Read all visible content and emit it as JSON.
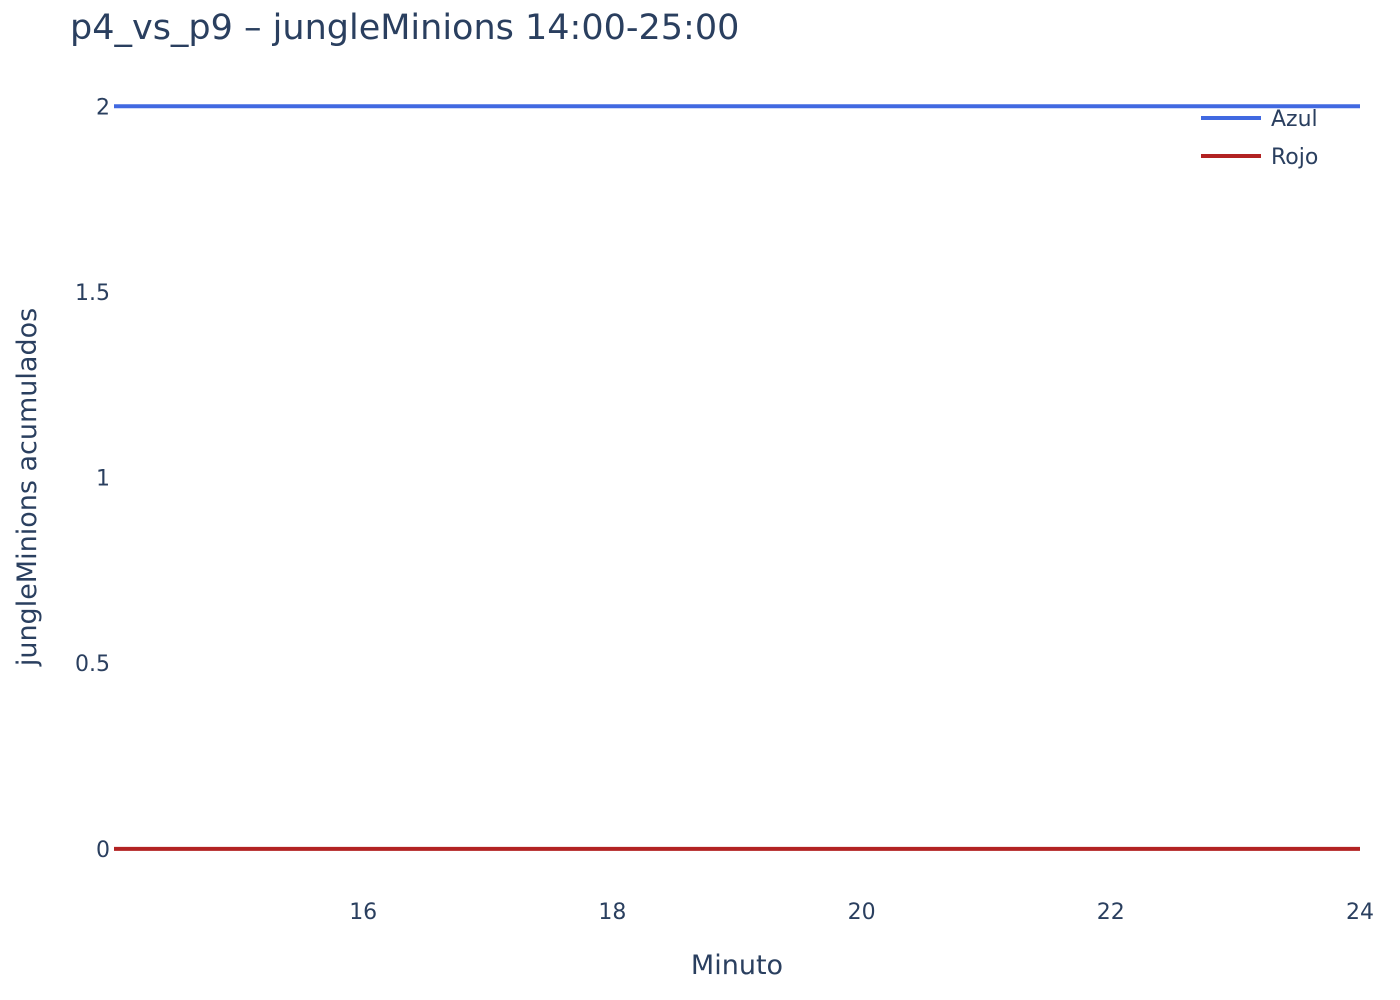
{
  "chart_data": {
    "type": "line",
    "title": "p4_vs_p9 – jungleMinions 14:00-25:00",
    "xlabel": "Minuto",
    "ylabel": "jungleMinions acumulados",
    "xlim": [
      14,
      24
    ],
    "ylim": [
      -0.1,
      2.06
    ],
    "x_ticks": [
      16,
      18,
      20,
      22,
      24
    ],
    "y_ticks": [
      0,
      0.5,
      1,
      1.5,
      2
    ],
    "y_tick_labels": [
      "0",
      "0.5",
      "1",
      "1.5",
      "2"
    ],
    "grid": false,
    "legend_position": "top-right",
    "series": [
      {
        "name": "Azul",
        "color": "#4169e1",
        "x": [
          14,
          24
        ],
        "y": [
          2,
          2
        ]
      },
      {
        "name": "Rojo",
        "color": "#b22222",
        "x": [
          14,
          24
        ],
        "y": [
          0,
          0
        ]
      }
    ]
  }
}
